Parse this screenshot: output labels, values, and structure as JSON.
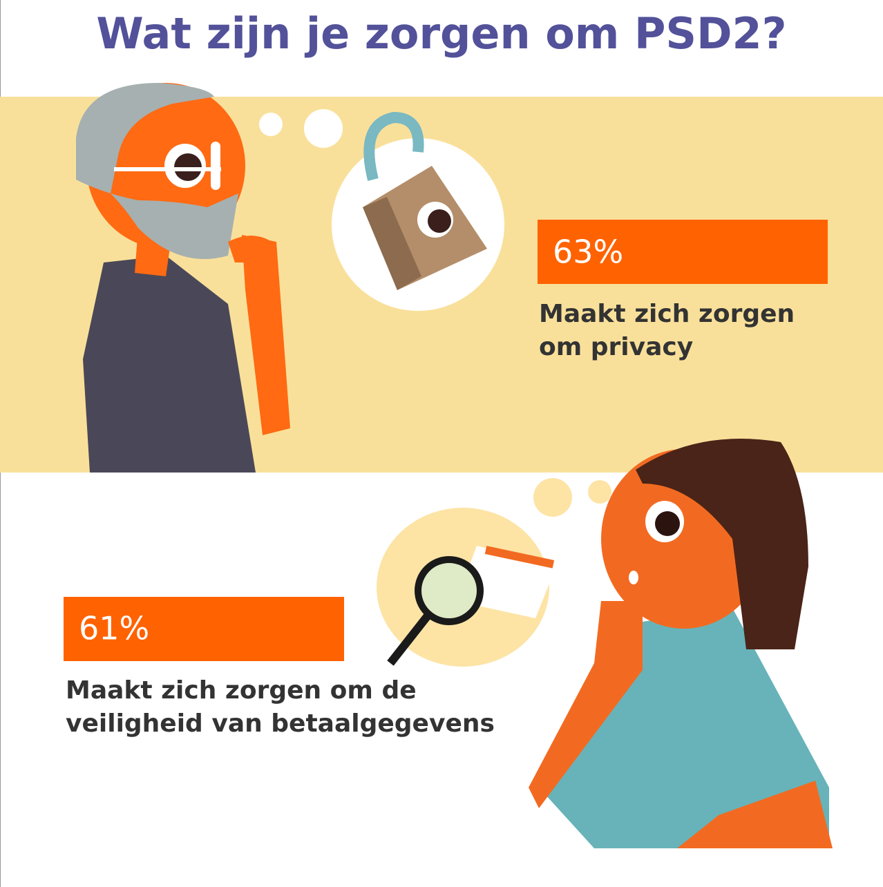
{
  "title": "Wat zijn je zorgen om PSD2?",
  "panels": [
    {
      "stat": "63%",
      "caption": [
        "Maakt zich zorgen",
        "om privacy"
      ]
    },
    {
      "stat": "61%",
      "caption": [
        "Maakt zich zorgen om de",
        "veiligheid van betaalgegevens"
      ]
    }
  ]
}
